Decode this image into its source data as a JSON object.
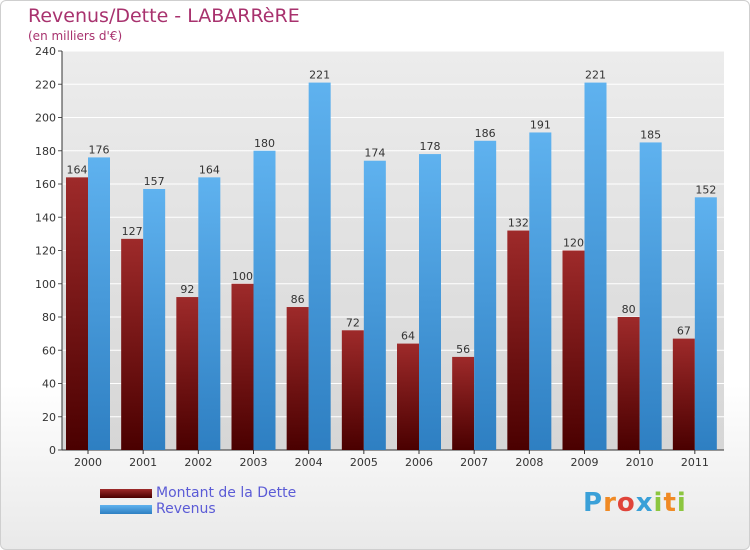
{
  "header": {
    "title": "Revenus/Dette - LABARRèRE",
    "subtitle": "(en milliers d'€)"
  },
  "legend": {
    "dette_label": "Montant de la Dette",
    "revenus_label": "Revenus"
  },
  "logo": {
    "letters": [
      "P",
      "r",
      "o",
      "x",
      "i",
      "t",
      "i"
    ],
    "colors": [
      "#3aa0d8",
      "#f08a24",
      "#e0443a",
      "#3aa0d8",
      "#8cc63f",
      "#f08a24",
      "#8cc63f"
    ]
  },
  "colors": {
    "dette": "#8b1a1a",
    "revenus": "#4aa3e6",
    "title": "#a8326e"
  },
  "chart_data": {
    "type": "bar",
    "categories": [
      "2000",
      "2001",
      "2002",
      "2003",
      "2004",
      "2005",
      "2006",
      "2007",
      "2008",
      "2009",
      "2010",
      "2011"
    ],
    "series": [
      {
        "name": "Montant de la Dette",
        "values": [
          164,
          127,
          92,
          100,
          86,
          72,
          64,
          56,
          132,
          120,
          80,
          67
        ]
      },
      {
        "name": "Revenus",
        "values": [
          176,
          157,
          164,
          180,
          221,
          174,
          178,
          186,
          191,
          221,
          185,
          152
        ]
      }
    ],
    "yticks": [
      0,
      20,
      40,
      60,
      80,
      100,
      120,
      140,
      160,
      180,
      200,
      220,
      240
    ],
    "ylim": [
      0,
      240
    ],
    "grid": true,
    "legend": "bottom-left"
  }
}
